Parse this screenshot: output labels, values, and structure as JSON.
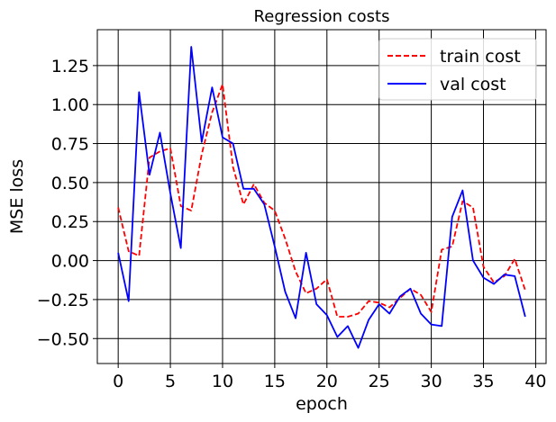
{
  "chart_data": {
    "type": "line",
    "title": "Regression costs",
    "xlabel": "epoch",
    "ylabel": "MSE loss",
    "xlim": [
      -2,
      41
    ],
    "ylim": [
      -0.66,
      1.48
    ],
    "xticks": [
      0,
      5,
      10,
      15,
      20,
      25,
      30,
      35,
      40
    ],
    "xtick_labels": [
      "0",
      "5",
      "10",
      "15",
      "20",
      "25",
      "30",
      "35",
      "40"
    ],
    "yticks": [
      -0.5,
      -0.25,
      0.0,
      0.25,
      0.5,
      0.75,
      1.0,
      1.25
    ],
    "ytick_labels": [
      "−0.50",
      "−0.25",
      "0.00",
      "0.25",
      "0.50",
      "0.75",
      "1.00",
      "1.25"
    ],
    "grid": true,
    "legend_position": "top-right",
    "x": [
      0,
      1,
      2,
      3,
      4,
      5,
      6,
      7,
      8,
      9,
      10,
      11,
      12,
      13,
      14,
      15,
      16,
      17,
      18,
      19,
      20,
      21,
      22,
      23,
      24,
      25,
      26,
      27,
      28,
      29,
      30,
      31,
      32,
      33,
      34,
      35,
      36,
      37,
      38,
      39
    ],
    "series": [
      {
        "name": "train cost",
        "color": "#ff0000",
        "style": "dashed",
        "values": [
          0.34,
          0.06,
          0.03,
          0.66,
          0.7,
          0.72,
          0.35,
          0.32,
          0.68,
          0.95,
          1.13,
          0.6,
          0.36,
          0.49,
          0.37,
          0.32,
          0.14,
          -0.07,
          -0.21,
          -0.18,
          -0.12,
          -0.36,
          -0.36,
          -0.34,
          -0.26,
          -0.27,
          -0.3,
          -0.24,
          -0.18,
          -0.22,
          -0.33,
          0.07,
          0.09,
          0.38,
          0.34,
          -0.04,
          -0.14,
          -0.1,
          0.01,
          -0.19
        ]
      },
      {
        "name": "val cost",
        "color": "#0000ff",
        "style": "solid",
        "values": [
          0.05,
          -0.26,
          1.08,
          0.55,
          0.82,
          0.43,
          0.08,
          1.37,
          0.76,
          1.11,
          0.79,
          0.75,
          0.46,
          0.46,
          0.36,
          0.09,
          -0.2,
          -0.37,
          0.05,
          -0.28,
          -0.35,
          -0.49,
          -0.42,
          -0.56,
          -0.38,
          -0.28,
          -0.34,
          -0.23,
          -0.18,
          -0.34,
          -0.41,
          -0.42,
          0.28,
          0.45,
          0.0,
          -0.11,
          -0.15,
          -0.09,
          -0.1,
          -0.36
        ]
      }
    ]
  }
}
